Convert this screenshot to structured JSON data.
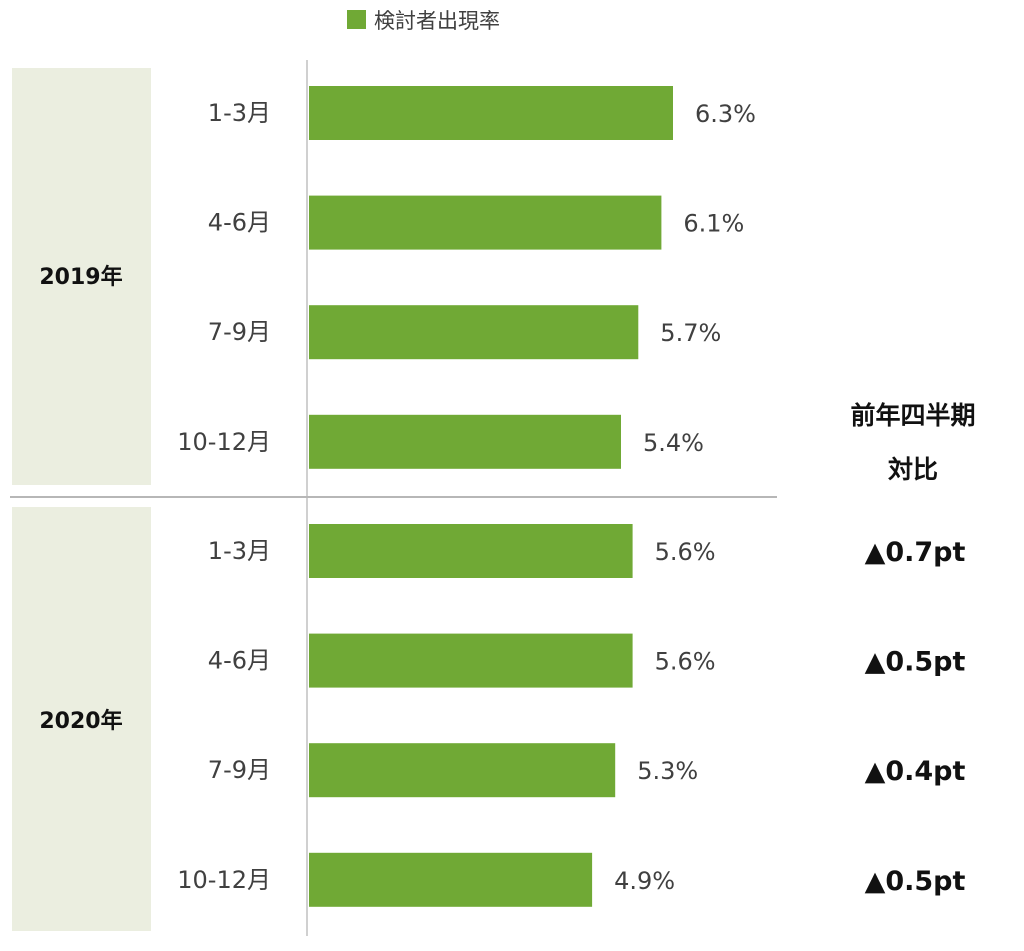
{
  "chart_data": {
    "type": "bar",
    "orientation": "horizontal",
    "legend": {
      "label": "検討者出現率",
      "position": "top"
    },
    "colors": {
      "bar": "#70a935",
      "group_band": "#ebeee0",
      "separator": "#b7b7b7",
      "axis": "#d0d0d0",
      "text": "#404040"
    },
    "groups": [
      {
        "label": "2019年",
        "categories": [
          "1-3月",
          "4-6月",
          "7-9月",
          "10-12月"
        ],
        "values": [
          6.3,
          6.1,
          5.7,
          5.4
        ],
        "value_labels": [
          "6.3%",
          "6.1%",
          "5.7%",
          "5.4%"
        ]
      },
      {
        "label": "2020年",
        "categories": [
          "1-3月",
          "4-6月",
          "7-9月",
          "10-12月"
        ],
        "values": [
          5.6,
          5.6,
          5.3,
          4.9
        ],
        "value_labels": [
          "5.6%",
          "5.6%",
          "5.3%",
          "4.9%"
        ]
      }
    ],
    "xlim": [
      0,
      7
    ],
    "grid": false,
    "yoy": {
      "header_line1": "前年四半期",
      "header_line2": "対比",
      "values": [
        "▲0.7pt",
        "▲0.5pt",
        "▲0.4pt",
        "▲0.5pt"
      ]
    }
  }
}
